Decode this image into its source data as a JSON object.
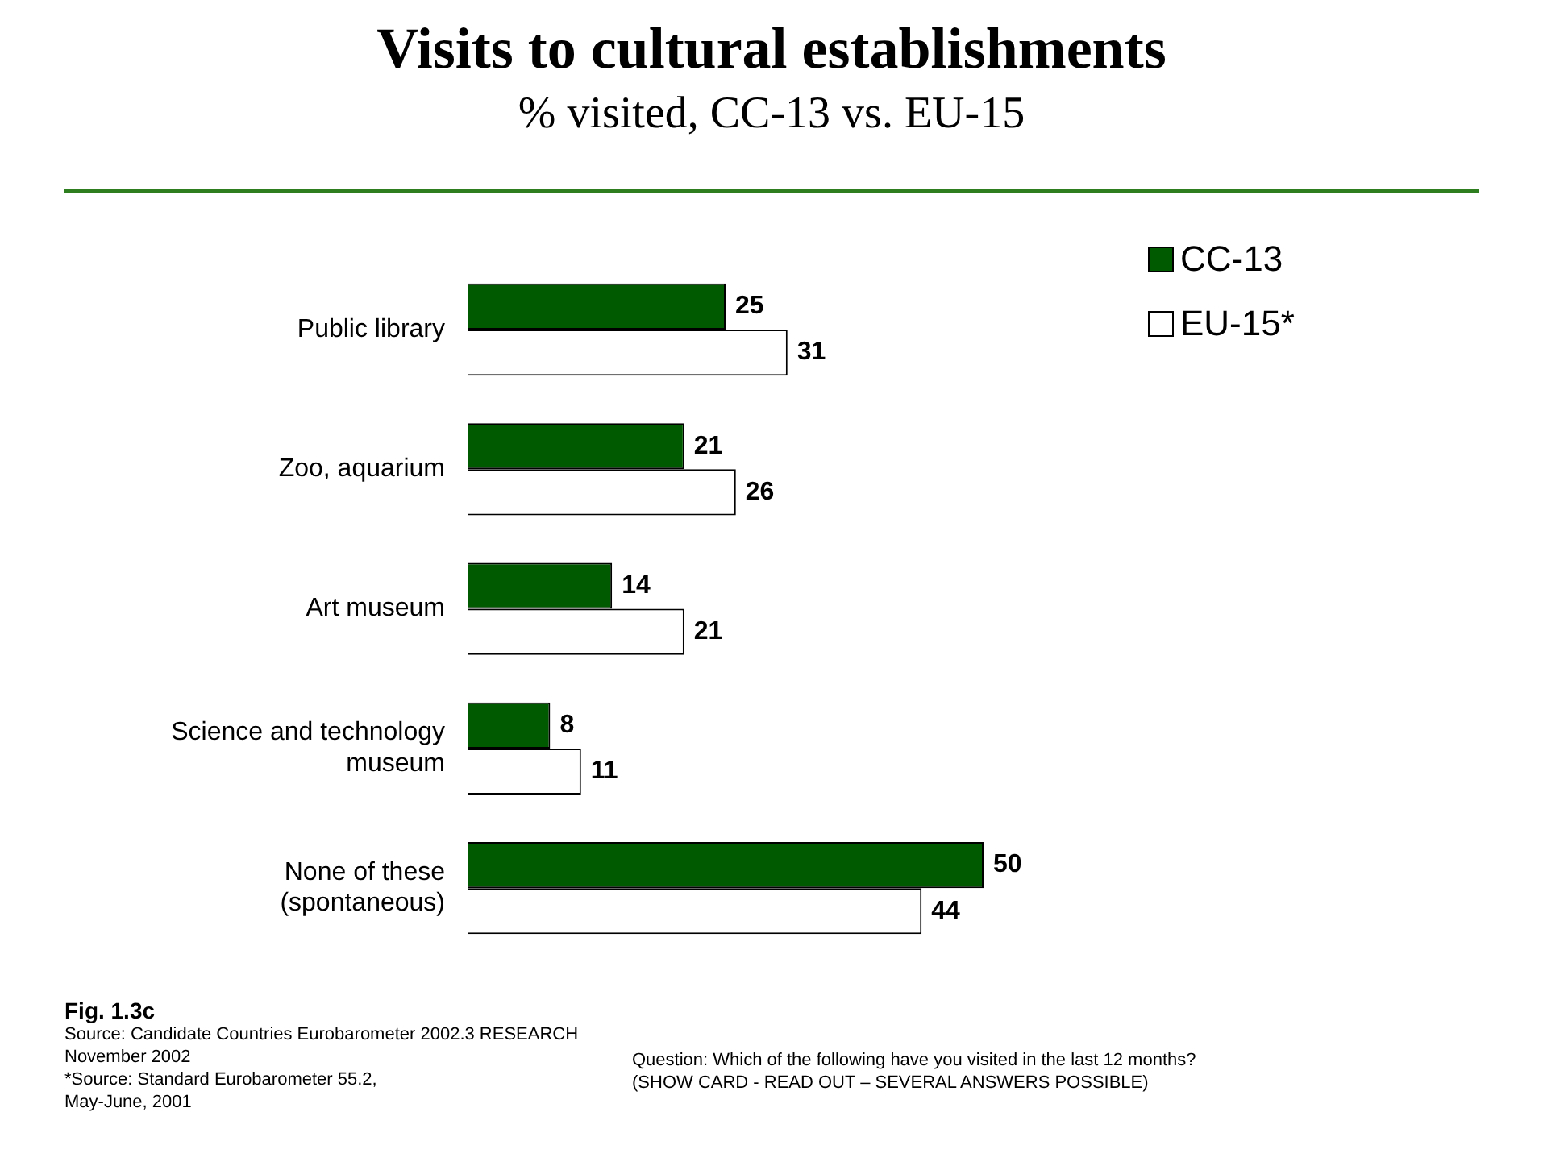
{
  "chart_data": {
    "type": "bar",
    "orientation": "horizontal",
    "title": "Visits to cultural establishments",
    "subtitle": "% visited, CC-13 vs. EU-15",
    "categories": [
      "Public library",
      "Zoo, aquarium",
      "Art museum",
      "Science and technology\nmuseum",
      "None of these\n(spontaneous)"
    ],
    "series": [
      {
        "name": "CC-13",
        "color": "#005a00",
        "values": [
          25,
          21,
          14,
          8,
          50
        ]
      },
      {
        "name": "EU-15*",
        "color": "#ffffff",
        "values": [
          31,
          26,
          21,
          11,
          44
        ]
      }
    ],
    "tick_labels": "y",
    "grid": false,
    "legend": "top right",
    "data_labels": true,
    "annotations": [
      "Fig. 1.3c",
      "Source: Candidate Countries Eurobarometer 2002.3 RESEARCH\nNovember  2002",
      "*Source: Standard Eurobarometer 55.2,\nMay-June, 2001",
      "Question:  Which of the following have you visited in the last 12 months?\n(SHOW CARD - READ OUT – SEVERAL ANSWERS POSSIBLE)"
    ]
  }
}
